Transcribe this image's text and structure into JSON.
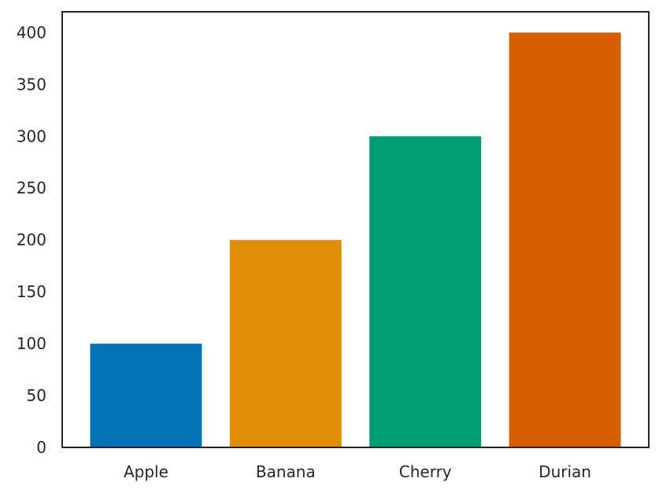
{
  "chart_data": {
    "type": "bar",
    "categories": [
      "Apple",
      "Banana",
      "Cherry",
      "Durian"
    ],
    "values": [
      100,
      200,
      300,
      400
    ],
    "colors": [
      "#0173b2",
      "#de8f05",
      "#029e73",
      "#d55e00"
    ],
    "title": "",
    "xlabel": "",
    "ylabel": "",
    "ylim": [
      0,
      420
    ],
    "yticks": [
      0,
      50,
      100,
      150,
      200,
      250,
      300,
      350,
      400
    ],
    "grid": false,
    "legend": null
  }
}
